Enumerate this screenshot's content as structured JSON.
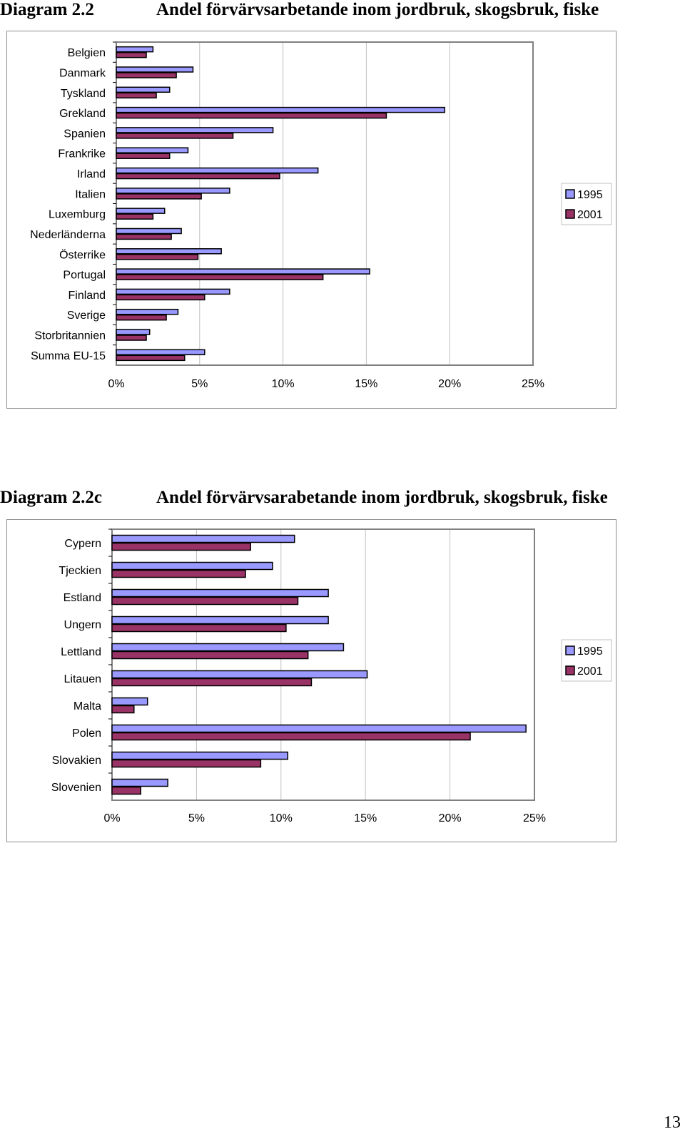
{
  "colors": {
    "series_1995": "#9999ff",
    "series_2001": "#993366",
    "gridline": "#c0c0c0",
    "plot_border": "#808080"
  },
  "page_number": "13",
  "chart_data": [
    {
      "label": "Diagram 2.2",
      "title": "Andel förvärvsarbetande inom jordbruk, skogsbruk, fiske",
      "type": "bar",
      "orientation": "horizontal",
      "categories": [
        "Belgien",
        "Danmark",
        "Tyskland",
        "Grekland",
        "Spanien",
        "Frankrike",
        "Irland",
        "Italien",
        "Luxemburg",
        "Nederländerna",
        "Österrike",
        "Portugal",
        "Finland",
        "Sverige",
        "Storbritannien",
        "Summa EU-15"
      ],
      "series": [
        {
          "name": "1995",
          "values": [
            2.2,
            4.6,
            3.2,
            19.7,
            9.4,
            4.3,
            12.1,
            6.8,
            2.9,
            3.9,
            6.3,
            15.2,
            6.8,
            3.7,
            2.0,
            5.3
          ]
        },
        {
          "name": "2001",
          "values": [
            1.8,
            3.6,
            2.4,
            16.2,
            7.0,
            3.2,
            9.8,
            5.1,
            2.2,
            3.3,
            4.9,
            12.4,
            5.3,
            3.0,
            1.8,
            4.1
          ]
        }
      ],
      "xlim": [
        0,
        25
      ],
      "xticks": [
        "0%",
        "5%",
        "10%",
        "15%",
        "20%",
        "25%"
      ],
      "grid": true,
      "legend": "right"
    },
    {
      "label": "Diagram 2.2c",
      "title": "Andel förvärvsarabetande inom jordbruk, skogsbruk, fiske",
      "type": "bar",
      "orientation": "horizontal",
      "categories": [
        "Cypern",
        "Tjeckien",
        "Estland",
        "Ungern",
        "Lettland",
        "Litauen",
        "Malta",
        "Polen",
        "Slovakien",
        "Slovenien"
      ],
      "series": [
        {
          "name": "1995",
          "values": [
            10.8,
            9.5,
            12.8,
            12.8,
            13.7,
            15.1,
            2.1,
            24.5,
            10.4,
            3.3
          ]
        },
        {
          "name": "2001",
          "values": [
            8.2,
            7.9,
            11.0,
            10.3,
            11.6,
            11.8,
            1.3,
            21.2,
            8.8,
            1.7
          ]
        }
      ],
      "xlim": [
        0,
        25
      ],
      "xticks": [
        "0%",
        "5%",
        "10%",
        "15%",
        "20%",
        "25%"
      ],
      "grid": true,
      "legend": "right"
    }
  ]
}
